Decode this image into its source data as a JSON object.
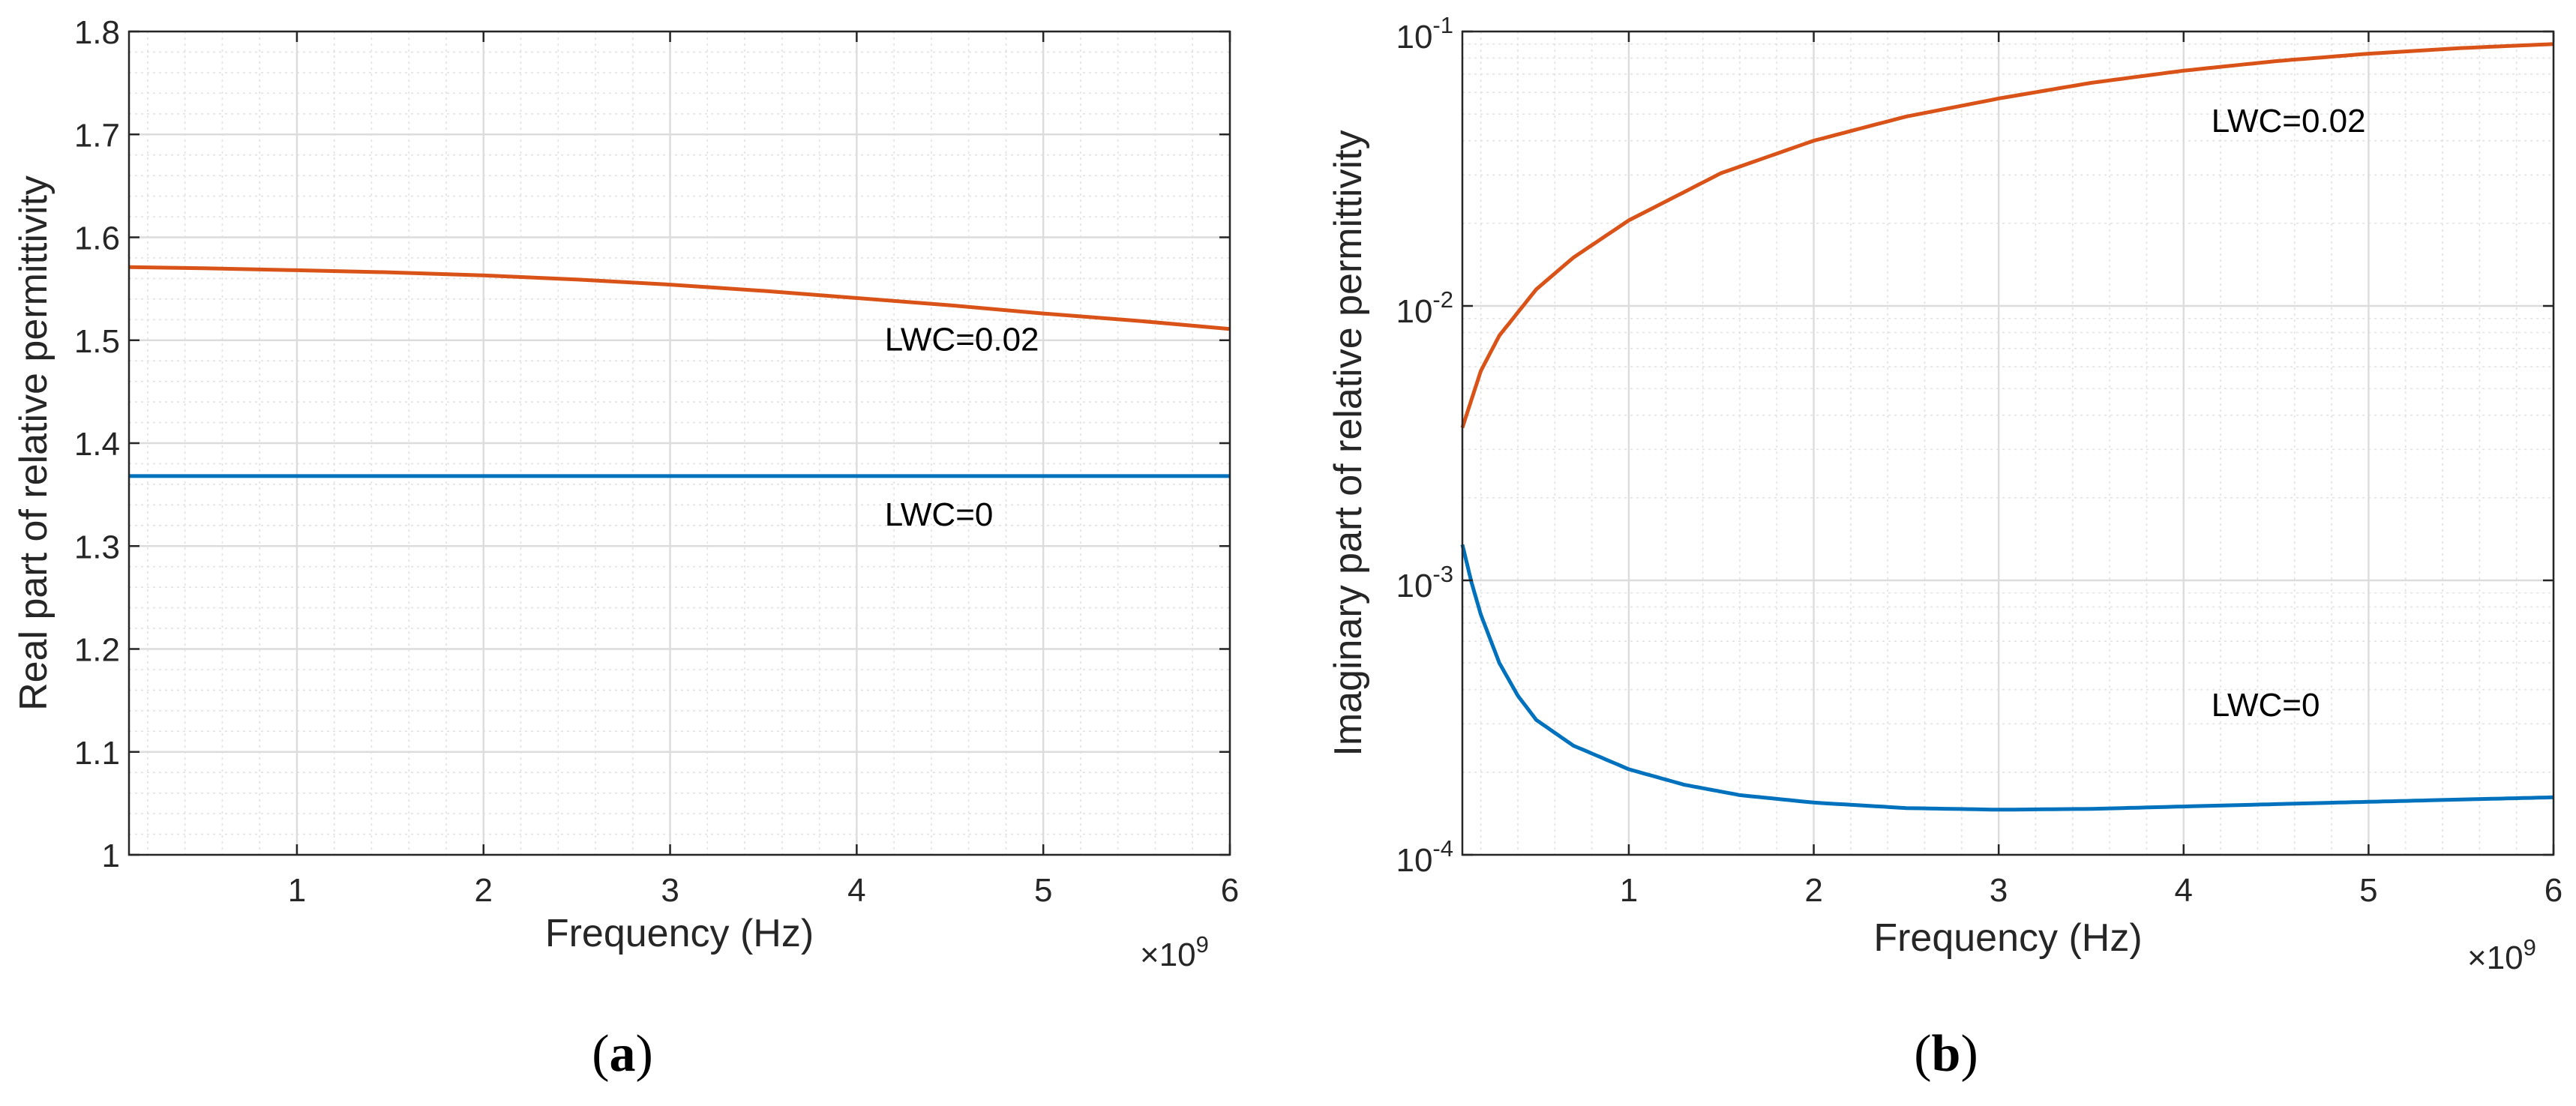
{
  "colors": {
    "lwc0": "#0072BD",
    "lwc002": "#D95319",
    "grid_major": "#dcdcdc",
    "grid_minor": "#e2e2e2",
    "axis": "#262626"
  },
  "chart_data": [
    {
      "id": "a",
      "type": "line",
      "caption": {
        "open": "(",
        "letter": "a",
        "close": ")"
      },
      "xlabel": "Frequency (Hz)",
      "ylabel": "Real part of relative permittivity",
      "xlim": [
        0.1,
        6
      ],
      "ylim": [
        1,
        1.8
      ],
      "yscale": "linear",
      "x_multiplier": {
        "base": "×10",
        "exponent": "9"
      },
      "xticks": [
        1,
        2,
        3,
        4,
        5,
        6
      ],
      "xtick_labels": [
        "1",
        "2",
        "3",
        "4",
        "5",
        "6"
      ],
      "yticks": [
        1,
        1.1,
        1.2,
        1.3,
        1.4,
        1.5,
        1.6,
        1.7,
        1.8
      ],
      "ytick_labels": [
        "1",
        "1.1",
        "1.2",
        "1.3",
        "1.4",
        "1.5",
        "1.6",
        "1.7",
        "1.8"
      ],
      "grid": "major+minor",
      "series": [
        {
          "name": "LWC=0.02",
          "color_key": "lwc002",
          "x": [
            0.1,
            0.5,
            1,
            1.5,
            2,
            2.5,
            3,
            3.5,
            4,
            4.5,
            5,
            5.5,
            6
          ],
          "y": [
            1.571,
            1.57,
            1.568,
            1.566,
            1.563,
            1.559,
            1.554,
            1.548,
            1.541,
            1.534,
            1.526,
            1.519,
            1.511
          ]
        },
        {
          "name": "LWC=0",
          "color_key": "lwc0",
          "x": [
            0.1,
            6
          ],
          "y": [
            1.368,
            1.368
          ]
        }
      ],
      "annotations": [
        {
          "text": "LWC=0.02",
          "x": 4.15,
          "y": 1.49
        },
        {
          "text": "LWC=0",
          "x": 4.15,
          "y": 1.32
        }
      ]
    },
    {
      "id": "b",
      "type": "line",
      "caption": {
        "open": "(",
        "letter": "b",
        "close": ")"
      },
      "xlabel": "Frequency (Hz)",
      "ylabel": "Imaginary part of relative permittivity",
      "xlim": [
        0.1,
        6
      ],
      "ylim": [
        0.0001,
        0.1
      ],
      "yscale": "log",
      "x_multiplier": {
        "base": "×10",
        "exponent": "9"
      },
      "xticks": [
        1,
        2,
        3,
        4,
        5,
        6
      ],
      "xtick_labels": [
        "1",
        "2",
        "3",
        "4",
        "5",
        "6"
      ],
      "yticks": [
        0.0001,
        0.001,
        0.01,
        0.1
      ],
      "ytick_labels": [
        {
          "base": "10",
          "exp": "-4"
        },
        {
          "base": "10",
          "exp": "-3"
        },
        {
          "base": "10",
          "exp": "-2"
        },
        {
          "base": "10",
          "exp": "-1"
        }
      ],
      "grid": "major+minor",
      "series": [
        {
          "name": "LWC=0.02",
          "color_key": "lwc002",
          "x": [
            0.1,
            0.2,
            0.3,
            0.5,
            0.7,
            1,
            1.5,
            2,
            2.5,
            3,
            3.5,
            4,
            4.5,
            5,
            5.5,
            6
          ],
          "y": [
            0.0036,
            0.0058,
            0.0078,
            0.0115,
            0.015,
            0.0205,
            0.0305,
            0.04,
            0.049,
            0.057,
            0.065,
            0.072,
            0.078,
            0.083,
            0.087,
            0.09
          ]
        },
        {
          "name": "LWC=0",
          "color_key": "lwc0",
          "x": [
            0.1,
            0.15,
            0.2,
            0.3,
            0.4,
            0.5,
            0.7,
            1,
            1.3,
            1.6,
            2,
            2.5,
            3,
            3.5,
            4,
            4.5,
            5,
            5.5,
            6
          ],
          "y": [
            0.00135,
            0.00098,
            0.00075,
            0.0005,
            0.00038,
            0.00031,
            0.00025,
            0.000205,
            0.00018,
            0.000165,
            0.000155,
            0.000148,
            0.000146,
            0.000147,
            0.00015,
            0.000153,
            0.000156,
            0.000159,
            0.000162
          ]
        }
      ],
      "annotations": [
        {
          "text": "LWC=0.02",
          "x": 4.15,
          "y": 0.043
        },
        {
          "text": "LWC=0",
          "x": 4.15,
          "y": 0.00032
        }
      ]
    }
  ]
}
